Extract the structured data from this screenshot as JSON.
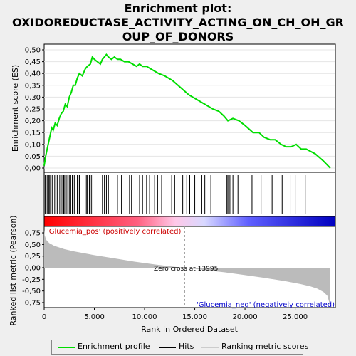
{
  "title_line1": "Enrichment plot:",
  "title_line2": "OXIDOREDUCTASE_ACTIVITY_ACTING_ON_CH_OH_GR",
  "title_line3": "OUP_OF_DONORS",
  "legend": {
    "enrichment": "Enrichment profile",
    "hits": "Hits",
    "ranking": "Ranking metric scores"
  },
  "colors": {
    "enrichment_line": "#00dd00",
    "hits": "#000000",
    "ranking_fill": "#bbbbbb",
    "pos_label": "#cc0000",
    "neg_label": "#0000cc"
  },
  "chart_data": [
    {
      "type": "line",
      "name": "enrichment-profile",
      "ylabel": "Enrichment score (ES)",
      "xlim": [
        0,
        29000
      ],
      "ylim": [
        0,
        0.5
      ],
      "yticks": [
        "0,00",
        "0,05",
        "0,10",
        "0,15",
        "0,20",
        "0,25",
        "0,30",
        "0,35",
        "0,40",
        "0,45",
        "0,50"
      ],
      "x": [
        0,
        150,
        300,
        450,
        600,
        750,
        900,
        1100,
        1300,
        1500,
        1700,
        1900,
        2100,
        2300,
        2500,
        2700,
        2900,
        3100,
        3300,
        3500,
        3800,
        4100,
        4300,
        4600,
        4800,
        5000,
        5300,
        5600,
        5800,
        6000,
        6200,
        6400,
        6700,
        7000,
        7300,
        7600,
        8000,
        8400,
        8800,
        9200,
        9500,
        9800,
        10200,
        10600,
        11000,
        11400,
        12000,
        12800,
        13600,
        14400,
        15200,
        16000,
        16800,
        17400,
        17900,
        18300,
        18800,
        19400,
        20000,
        20800,
        21400,
        21900,
        22500,
        23000,
        23600,
        24100,
        24600,
        25100,
        25600,
        26100,
        27000,
        27800,
        28500
      ],
      "y": [
        0.01,
        0.05,
        0.08,
        0.11,
        0.14,
        0.17,
        0.16,
        0.19,
        0.18,
        0.21,
        0.23,
        0.24,
        0.27,
        0.26,
        0.3,
        0.32,
        0.35,
        0.35,
        0.38,
        0.4,
        0.39,
        0.42,
        0.43,
        0.44,
        0.47,
        0.46,
        0.45,
        0.44,
        0.46,
        0.47,
        0.48,
        0.47,
        0.46,
        0.47,
        0.46,
        0.46,
        0.45,
        0.45,
        0.44,
        0.43,
        0.44,
        0.43,
        0.43,
        0.42,
        0.41,
        0.4,
        0.39,
        0.37,
        0.34,
        0.31,
        0.29,
        0.27,
        0.25,
        0.24,
        0.22,
        0.2,
        0.21,
        0.2,
        0.18,
        0.15,
        0.15,
        0.13,
        0.12,
        0.12,
        0.1,
        0.09,
        0.09,
        0.1,
        0.08,
        0.08,
        0.06,
        0.03,
        0.0
      ]
    },
    {
      "type": "scatter",
      "name": "hits",
      "x": [
        100,
        300,
        450,
        550,
        650,
        800,
        1050,
        1300,
        1550,
        1700,
        1850,
        1950,
        2050,
        2200,
        2350,
        2500,
        2650,
        2800,
        3000,
        3300,
        3500,
        3550,
        4200,
        4300,
        4500,
        4700,
        4850,
        5800,
        6000,
        6200,
        6400,
        7300,
        7700,
        8500,
        8700,
        9500,
        9800,
        10200,
        10500,
        11000,
        11300,
        11700,
        12700,
        13000,
        13800,
        14200,
        14500,
        15000,
        15700,
        16000,
        16600,
        18200,
        18300,
        18500,
        18800,
        19300,
        20700,
        21600,
        22700,
        23700,
        24500,
        25000,
        26000
      ]
    },
    {
      "type": "area",
      "name": "ranking-metric",
      "ylabel": "Ranked list metric (Pearson)",
      "xlabel": "Rank in Ordered Dataset",
      "ylim": [
        -0.95,
        0.82
      ],
      "yticks": [
        "0,75",
        "0,50",
        "0,25",
        "0,00",
        "-0,25",
        "-0,50",
        "-0,75"
      ],
      "xticks": [
        "0",
        "5.000",
        "10.000",
        "15.000",
        "20.000",
        "25.000"
      ],
      "x": [
        0,
        50,
        200,
        500,
        1000,
        2000,
        3000,
        5000,
        7000,
        9000,
        11000,
        13000,
        13995,
        16000,
        18000,
        20000,
        22000,
        24000,
        25500,
        26500,
        27200,
        27800,
        28200,
        28400,
        28500
      ],
      "y": [
        0.82,
        0.7,
        0.6,
        0.53,
        0.47,
        0.4,
        0.35,
        0.27,
        0.2,
        0.13,
        0.07,
        0.02,
        0.0,
        -0.05,
        -0.1,
        -0.16,
        -0.22,
        -0.29,
        -0.35,
        -0.4,
        -0.45,
        -0.52,
        -0.6,
        -0.75,
        -0.95
      ],
      "pos_label": "'Glucemia_pos' (positively correlated)",
      "neg_label": "'Glucemia_neg' (negatively correlated)",
      "zero_cross_label": "Zero cross at 13995",
      "zero_cross": 13995
    }
  ]
}
